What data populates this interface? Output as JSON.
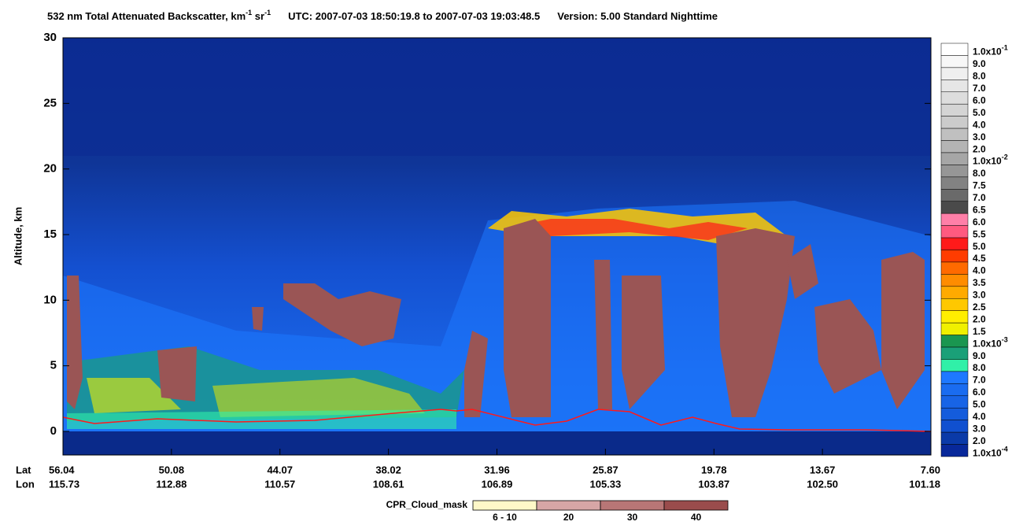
{
  "chart_data": {
    "type": "curtain",
    "title": {
      "main": "532 nm Total Attenuated Backscatter, km",
      "sup1": "-1",
      "mid": " sr",
      "sup2": "-1",
      "utc": "UTC:  2007-07-03 18:50:19.8  to  2007-07-03 19:03:48.5",
      "version": "Version: 5.00  Standard  Nighttime"
    },
    "y_label": "Altitude, km",
    "ylim": [
      -1.8,
      30
    ],
    "yticks": [
      0,
      5,
      10,
      15,
      20,
      25,
      30
    ],
    "x_row_labels": [
      "Lat",
      "Lon"
    ],
    "x_labels": [
      [
        "56.04",
        "115.73"
      ],
      [
        "50.08",
        "112.88"
      ],
      [
        "44.07",
        "110.57"
      ],
      [
        "38.02",
        "108.61"
      ],
      [
        "31.96",
        "106.89"
      ],
      [
        "25.87",
        "105.33"
      ],
      [
        "19.78",
        "103.87"
      ],
      [
        "13.67",
        "102.50"
      ],
      [
        "7.60",
        "101.18"
      ]
    ],
    "color_scale": [
      {
        "label": "1.0x10",
        "exp": "-1",
        "color": "#ffffff"
      },
      {
        "label": "9.0",
        "color": "#f7f7f7"
      },
      {
        "label": "8.0",
        "color": "#efefef"
      },
      {
        "label": "7.0",
        "color": "#e6e6e6"
      },
      {
        "label": "6.0",
        "color": "#dddddd"
      },
      {
        "label": "5.0",
        "color": "#d4d4d4"
      },
      {
        "label": "4.0",
        "color": "#cbcbcb"
      },
      {
        "label": "3.0",
        "color": "#c0c0c0"
      },
      {
        "label": "2.0",
        "color": "#b4b4b4"
      },
      {
        "label": "1.0x10",
        "exp": "-2",
        "color": "#a6a6a6"
      },
      {
        "label": "8.0",
        "color": "#969696"
      },
      {
        "label": "7.5",
        "color": "#828282"
      },
      {
        "label": "7.0",
        "color": "#6a6a6a"
      },
      {
        "label": "6.5",
        "color": "#4a4a4a"
      },
      {
        "label": "6.0",
        "color": "#ff7fa8"
      },
      {
        "label": "5.5",
        "color": "#ff5a80"
      },
      {
        "label": "5.0",
        "color": "#ff1a1a"
      },
      {
        "label": "4.5",
        "color": "#ff3c00"
      },
      {
        "label": "4.0",
        "color": "#ff6a00"
      },
      {
        "label": "3.5",
        "color": "#ff8c00"
      },
      {
        "label": "3.0",
        "color": "#ffaa00"
      },
      {
        "label": "2.5",
        "color": "#ffc800"
      },
      {
        "label": "2.0",
        "color": "#ffee00"
      },
      {
        "label": "1.5",
        "color": "#f0f000"
      },
      {
        "label": "1.0x10",
        "exp": "-3",
        "color": "#1a9650"
      },
      {
        "label": "9.0",
        "color": "#1aa078"
      },
      {
        "label": "8.0",
        "color": "#30f0a8"
      },
      {
        "label": "7.0",
        "color": "#1e78ff"
      },
      {
        "label": "6.0",
        "color": "#1a6cf0"
      },
      {
        "label": "5.0",
        "color": "#1864e6"
      },
      {
        "label": "4.0",
        "color": "#145cdc"
      },
      {
        "label": "3.0",
        "color": "#1050d0"
      },
      {
        "label": "2.0",
        "color": "#0a3aa8"
      },
      {
        "label": "1.0x10",
        "exp": "-4",
        "color": "#08289a"
      }
    ],
    "cloud_mask": {
      "title": "CPR_Cloud_mask",
      "classes": [
        {
          "label": "6 - 10",
          "color": "#fff8c8"
        },
        {
          "label": "20",
          "color": "#d7a6a6"
        },
        {
          "label": "30",
          "color": "#b87676"
        },
        {
          "label": "40",
          "color": "#9a4c4c"
        }
      ]
    }
  }
}
